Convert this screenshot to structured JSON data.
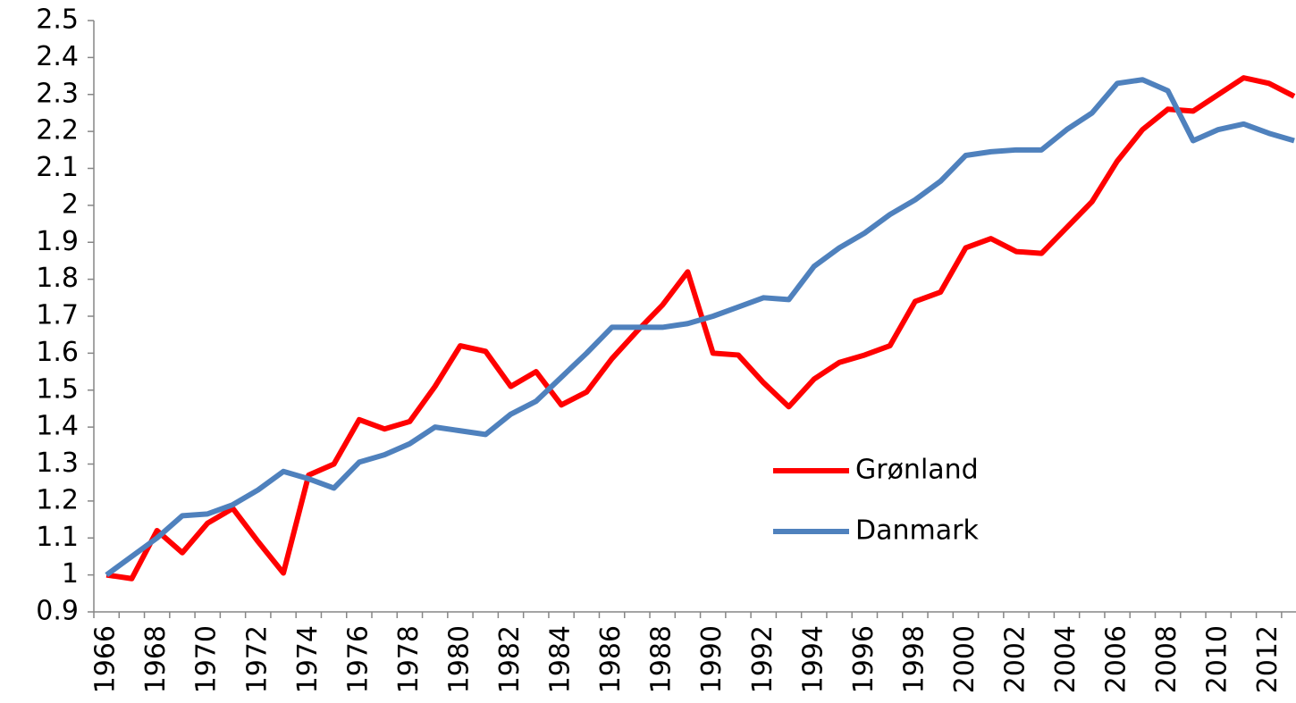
{
  "chart_data": {
    "type": "line",
    "categories": [
      "1966",
      null,
      "1968",
      null,
      "1970",
      null,
      "1972",
      null,
      "1974",
      null,
      "1976",
      null,
      "1978",
      null,
      "1980",
      null,
      "1982",
      null,
      "1984",
      null,
      "1986",
      null,
      "1988",
      null,
      "1990",
      null,
      "1992",
      null,
      "1994",
      null,
      "1996",
      null,
      "1998",
      null,
      "2000",
      null,
      "2002",
      null,
      "2004",
      null,
      "2006",
      null,
      "2008",
      null,
      "2010",
      null,
      "2012",
      null
    ],
    "series": [
      {
        "name": "Grønland",
        "color": "#ff0000",
        "values": [
          1.0,
          0.99,
          1.12,
          1.06,
          1.14,
          1.18,
          1.09,
          1.005,
          1.27,
          1.3,
          1.42,
          1.395,
          1.415,
          1.51,
          1.62,
          1.605,
          1.51,
          1.55,
          1.46,
          1.495,
          1.585,
          1.66,
          1.73,
          1.82,
          1.6,
          1.595,
          1.52,
          1.455,
          1.53,
          1.575,
          1.595,
          1.62,
          1.74,
          1.765,
          1.885,
          1.91,
          1.875,
          1.87,
          1.94,
          2.01,
          2.12,
          2.205,
          2.26,
          2.255,
          2.3,
          2.345,
          2.33,
          2.295
        ]
      },
      {
        "name": "Danmark",
        "color": "#4f81bd",
        "values": [
          1.0,
          1.05,
          1.1,
          1.16,
          1.165,
          1.19,
          1.23,
          1.28,
          1.26,
          1.235,
          1.305,
          1.325,
          1.355,
          1.4,
          1.39,
          1.38,
          1.435,
          1.47,
          1.535,
          1.6,
          1.67,
          1.67,
          1.67,
          1.68,
          1.7,
          1.725,
          1.75,
          1.745,
          1.835,
          1.885,
          1.925,
          1.975,
          2.015,
          2.065,
          2.135,
          2.145,
          2.15,
          2.15,
          2.205,
          2.25,
          2.33,
          2.34,
          2.31,
          2.175,
          2.205,
          2.22,
          2.195,
          2.175
        ]
      }
    ],
    "ylim": [
      0.9,
      2.5
    ],
    "yticks": [
      0.9,
      1,
      1.1,
      1.2,
      1.3,
      1.4,
      1.5,
      1.6,
      1.7,
      1.8,
      1.9,
      2,
      2.1,
      2.2,
      2.3,
      2.4,
      2.5
    ],
    "grid": false,
    "legend": "right"
  }
}
